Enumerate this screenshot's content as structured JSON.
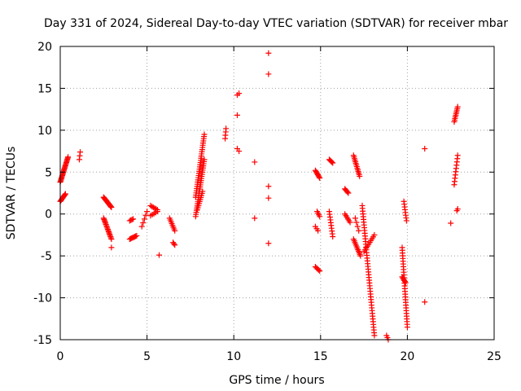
{
  "chart_data": {
    "type": "scatter",
    "title": "Day 331 of 2024, Sidereal Day-to-day VTEC variation (SDTVAR) for receiver mbar",
    "xlabel": "GPS time / hours",
    "ylabel": "SDTVAR / TECUs",
    "xlim": [
      0,
      25
    ],
    "ylim": [
      -15,
      20
    ],
    "xticks": [
      0,
      5,
      10,
      15,
      20,
      25
    ],
    "yticks": [
      -15,
      -10,
      -5,
      0,
      5,
      10,
      15,
      20
    ],
    "grid": true,
    "marker": "+",
    "marker_color": "#ff0000",
    "series": [
      {
        "name": "SDTVAR",
        "segments": [
          {
            "x0": 0.0,
            "x1": 0.45,
            "y0": 3.8,
            "y1": 6.8,
            "n": 24
          },
          {
            "x0": 0.0,
            "x1": 0.3,
            "y0": 1.5,
            "y1": 2.4,
            "n": 10
          },
          {
            "x0": 1.1,
            "x1": 1.15,
            "y0": 6.5,
            "y1": 7.4,
            "n": 3
          },
          {
            "x0": 2.5,
            "x1": 2.95,
            "y0": 2.0,
            "y1": 0.8,
            "n": 16
          },
          {
            "x0": 2.5,
            "x1": 2.95,
            "y0": -0.5,
            "y1": -3.0,
            "n": 18
          },
          {
            "x0": 2.95,
            "x1": 2.95,
            "y0": -4.0,
            "y1": -4.0,
            "n": 1
          },
          {
            "x0": 4.0,
            "x1": 4.4,
            "y0": -3.0,
            "y1": -2.6,
            "n": 8
          },
          {
            "x0": 4.0,
            "x1": 4.2,
            "y0": -0.8,
            "y1": -0.6,
            "n": 4
          },
          {
            "x0": 4.7,
            "x1": 5.0,
            "y0": -1.5,
            "y1": 0.3,
            "n": 5
          },
          {
            "x0": 5.2,
            "x1": 5.6,
            "y0": 1.0,
            "y1": 0.5,
            "n": 6
          },
          {
            "x0": 5.2,
            "x1": 5.6,
            "y0": -0.2,
            "y1": 0.3,
            "n": 5
          },
          {
            "x0": 5.7,
            "x1": 5.7,
            "y0": -4.9,
            "y1": -4.9,
            "n": 1
          },
          {
            "x0": 6.3,
            "x1": 6.6,
            "y0": -0.5,
            "y1": -2.0,
            "n": 8
          },
          {
            "x0": 6.5,
            "x1": 6.6,
            "y0": -3.4,
            "y1": -3.7,
            "n": 3
          },
          {
            "x0": 7.8,
            "x1": 8.3,
            "y0": 2.0,
            "y1": 9.5,
            "n": 30
          },
          {
            "x0": 7.8,
            "x1": 8.3,
            "y0": -0.3,
            "y1": 6.5,
            "n": 28
          },
          {
            "x0": 7.9,
            "x1": 8.2,
            "y0": 0.5,
            "y1": 2.7,
            "n": 10
          },
          {
            "x0": 9.5,
            "x1": 9.55,
            "y0": 9.0,
            "y1": 10.2,
            "n": 4
          },
          {
            "x0": 10.2,
            "x1": 10.3,
            "y0": 14.2,
            "y1": 14.4,
            "n": 2
          },
          {
            "x0": 10.2,
            "x1": 10.2,
            "y0": 11.8,
            "y1": 11.8,
            "n": 1
          },
          {
            "x0": 10.2,
            "x1": 10.3,
            "y0": 7.8,
            "y1": 7.5,
            "n": 2
          },
          {
            "x0": 11.2,
            "x1": 11.2,
            "y0": 6.2,
            "y1": 6.2,
            "n": 1
          },
          {
            "x0": 11.2,
            "x1": 11.2,
            "y0": -0.5,
            "y1": -0.5,
            "n": 1
          },
          {
            "x0": 12.0,
            "x1": 12.0,
            "y0": 19.2,
            "y1": 19.2,
            "n": 1
          },
          {
            "x0": 12.0,
            "x1": 12.0,
            "y0": 16.7,
            "y1": 16.7,
            "n": 1
          },
          {
            "x0": 12.0,
            "x1": 12.0,
            "y0": 3.3,
            "y1": 3.3,
            "n": 1
          },
          {
            "x0": 12.0,
            "x1": 12.0,
            "y0": 1.9,
            "y1": 1.9,
            "n": 1
          },
          {
            "x0": 12.0,
            "x1": 12.0,
            "y0": -3.5,
            "y1": -3.5,
            "n": 1
          },
          {
            "x0": 14.7,
            "x1": 14.95,
            "y0": 5.2,
            "y1": 4.3,
            "n": 8
          },
          {
            "x0": 14.8,
            "x1": 14.95,
            "y0": 0.3,
            "y1": -0.3,
            "n": 4
          },
          {
            "x0": 14.7,
            "x1": 14.85,
            "y0": -1.5,
            "y1": -2.0,
            "n": 3
          },
          {
            "x0": 14.7,
            "x1": 14.95,
            "y0": -6.3,
            "y1": -6.8,
            "n": 5
          },
          {
            "x0": 15.5,
            "x1": 15.7,
            "y0": 6.5,
            "y1": 6.1,
            "n": 5
          },
          {
            "x0": 15.5,
            "x1": 15.7,
            "y0": 0.3,
            "y1": -2.7,
            "n": 10
          },
          {
            "x0": 16.4,
            "x1": 16.6,
            "y0": 3.0,
            "y1": 2.5,
            "n": 5
          },
          {
            "x0": 16.4,
            "x1": 16.7,
            "y0": 0.0,
            "y1": -1.0,
            "n": 6
          },
          {
            "x0": 16.9,
            "x1": 17.25,
            "y0": 7.0,
            "y1": 4.5,
            "n": 14
          },
          {
            "x0": 16.9,
            "x1": 17.3,
            "y0": -3.0,
            "y1": -5.0,
            "n": 12
          },
          {
            "x0": 17.0,
            "x1": 17.2,
            "y0": -0.5,
            "y1": -2.0,
            "n": 4
          },
          {
            "x0": 17.4,
            "x1": 18.1,
            "y0": 1.0,
            "y1": -14.5,
            "n": 48
          },
          {
            "x0": 17.5,
            "x1": 18.1,
            "y0": -4.5,
            "y1": -2.5,
            "n": 10
          },
          {
            "x0": 18.8,
            "x1": 18.9,
            "y0": -14.5,
            "y1": -15.0,
            "n": 3
          },
          {
            "x0": 19.8,
            "x1": 19.95,
            "y0": 1.5,
            "y1": -0.8,
            "n": 8
          },
          {
            "x0": 19.7,
            "x1": 20.0,
            "y0": -4.0,
            "y1": -13.5,
            "n": 30
          },
          {
            "x0": 19.7,
            "x1": 19.9,
            "y0": -7.5,
            "y1": -8.2,
            "n": 6
          },
          {
            "x0": 21.0,
            "x1": 21.0,
            "y0": 7.8,
            "y1": 7.8,
            "n": 1
          },
          {
            "x0": 21.0,
            "x1": 21.0,
            "y0": -10.5,
            "y1": -10.5,
            "n": 1
          },
          {
            "x0": 22.5,
            "x1": 22.5,
            "y0": -1.1,
            "y1": -1.1,
            "n": 1
          },
          {
            "x0": 22.7,
            "x1": 22.9,
            "y0": 11.0,
            "y1": 12.8,
            "n": 10
          },
          {
            "x0": 22.7,
            "x1": 22.9,
            "y0": 3.5,
            "y1": 7.0,
            "n": 10
          },
          {
            "x0": 22.85,
            "x1": 22.9,
            "y0": 0.4,
            "y1": 0.6,
            "n": 2
          }
        ]
      }
    ]
  }
}
